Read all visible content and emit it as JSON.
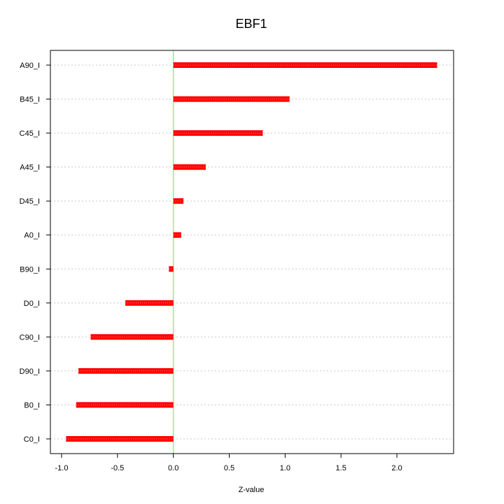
{
  "chart_data": {
    "type": "bar",
    "orientation": "horizontal",
    "title": "EBF1",
    "xlabel": "Z-value",
    "ylabel": "",
    "xlim": [
      -1.05,
      2.5
    ],
    "xticks": [
      -1.0,
      -0.5,
      0.0,
      0.5,
      1.0,
      1.5,
      2.0
    ],
    "xtick_labels": [
      "-1.0",
      "-0.5",
      "0.0",
      "0.5",
      "1.0",
      "1.5",
      "2.0"
    ],
    "categories": [
      "A90_I",
      "B45_I",
      "C45_I",
      "A45_I",
      "D45_I",
      "A0_I",
      "B90_I",
      "D0_I",
      "C90_I",
      "D90_I",
      "B0_I",
      "C0_I"
    ],
    "values": [
      2.36,
      1.04,
      0.8,
      0.29,
      0.09,
      0.07,
      -0.04,
      -0.43,
      -0.74,
      -0.85,
      -0.87,
      -0.96
    ],
    "bar_color": "#ff0000",
    "reference_line": {
      "x": 0.0,
      "color": "#90ee90"
    },
    "grid": "horizontal dotted"
  }
}
